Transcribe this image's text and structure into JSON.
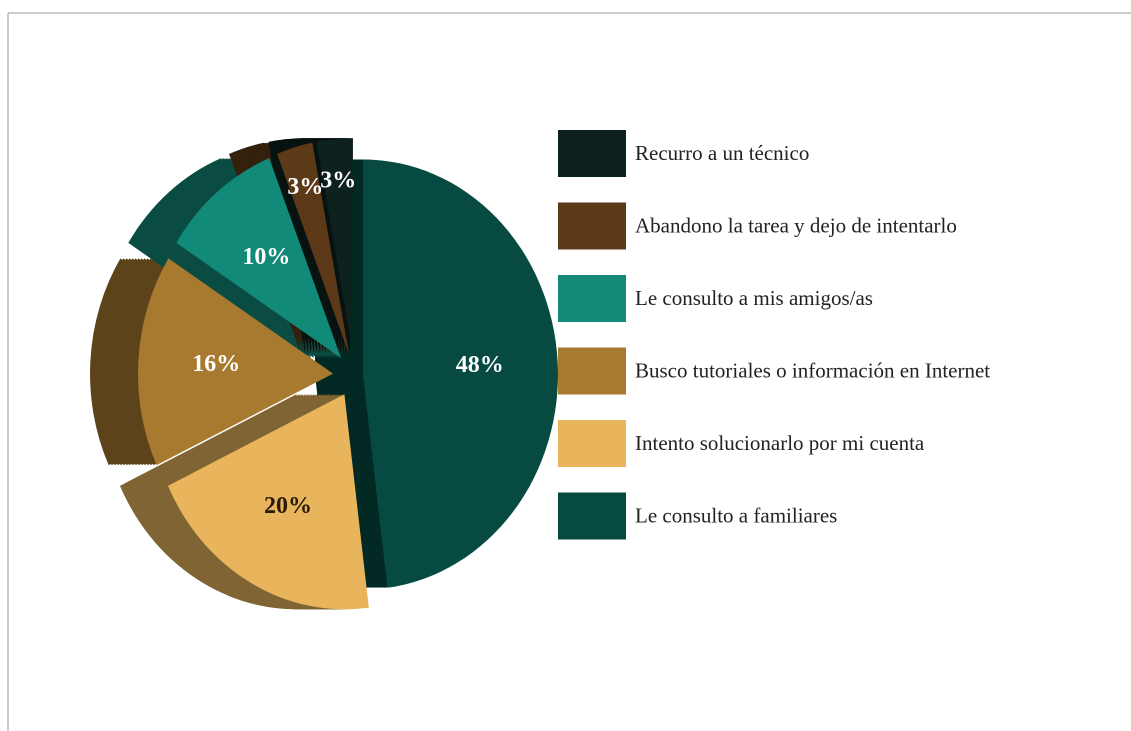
{
  "chart_data": {
    "type": "pie",
    "categories": [
      "Recurro a un técnico",
      "Abandono la tarea y dejo de intentarlo",
      "Le consulto a mis amigos/as",
      "Busco tutoriales o información en Internet",
      "Intento solucionarlo por mi cuenta",
      "Le consulto a familiares"
    ],
    "values": [
      3,
      3,
      10,
      16,
      20,
      48
    ],
    "value_labels": [
      "3%",
      "3%",
      "10%",
      "16%",
      "20%",
      "48%"
    ],
    "colors": [
      "#0d211f",
      "#5c3a17",
      "#128a7a",
      "#a87a30",
      "#e8b55c",
      "#064a42"
    ],
    "legend": "right"
  }
}
